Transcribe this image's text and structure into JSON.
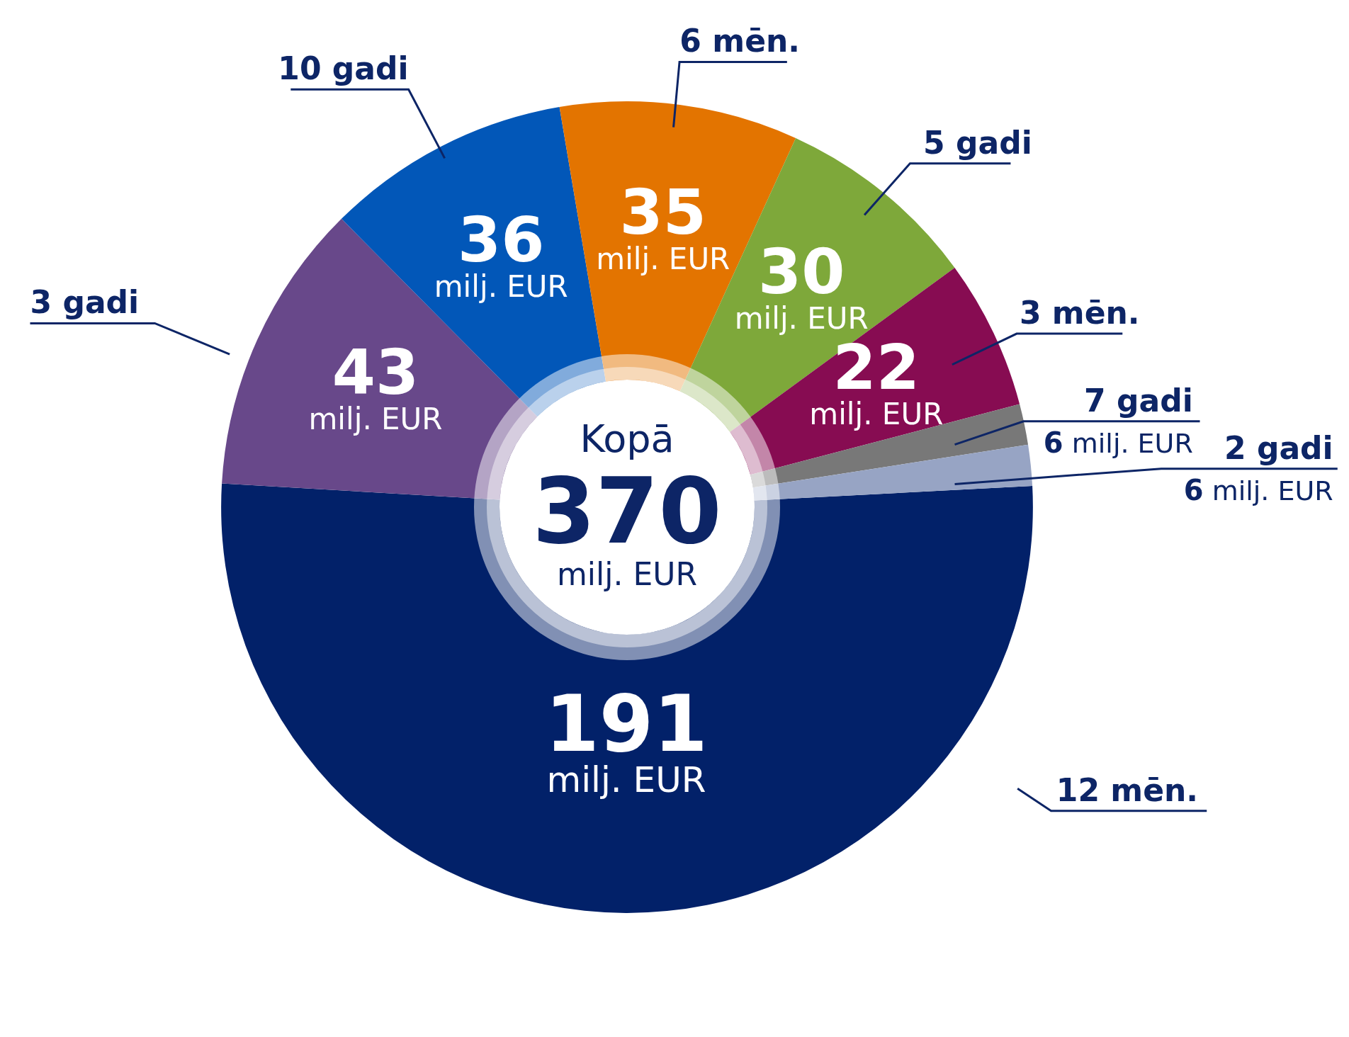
{
  "chart_data": {
    "type": "donut",
    "categories": [
      "12 mēn.",
      "3 gadi",
      "10 gadi",
      "6 mēn.",
      "5 gadi",
      "3 mēn.",
      "7 gadi",
      "2 gadi"
    ],
    "values": [
      191,
      43,
      36,
      35,
      30,
      22,
      6,
      6
    ],
    "colors": [
      "#022169",
      "#68488a",
      "#0257b8",
      "#e37400",
      "#7ea83a",
      "#870c52",
      "#787878",
      "#97a4c4"
    ],
    "value_labels": [
      "191 milj. EUR",
      "43 milj. EUR",
      "36 milj. EUR",
      "35 milj. EUR",
      "30 milj. EUR",
      "22 milj. EUR",
      "6 milj. EUR",
      "6 milj. EUR"
    ],
    "annotations": [
      "Kopā",
      "370",
      "milj. EUR"
    ]
  }
}
